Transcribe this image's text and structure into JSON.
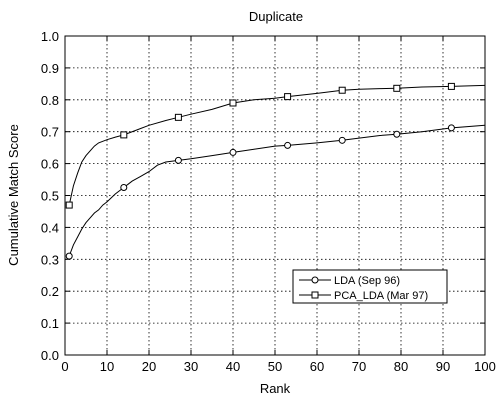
{
  "chart_data": {
    "type": "line",
    "title": "Duplicate",
    "xlabel": "Rank",
    "ylabel": "Cumulative Match Score",
    "xlim": [
      0,
      100
    ],
    "ylim": [
      0.0,
      1.0
    ],
    "xticks": [
      "0",
      "10",
      "20",
      "30",
      "40",
      "50",
      "60",
      "70",
      "80",
      "90",
      "100"
    ],
    "yticks": [
      "0.0",
      "0.1",
      "0.2",
      "0.3",
      "0.4",
      "0.5",
      "0.6",
      "0.7",
      "0.8",
      "0.9",
      "1.0"
    ],
    "grid": true,
    "legend_position": "lower-right",
    "series": [
      {
        "name": "LDA (Sep 96)",
        "marker": "circle",
        "x": [
          1,
          2,
          3,
          4,
          5,
          6,
          7,
          8,
          9,
          10,
          12,
          14,
          16,
          18,
          20,
          22,
          24,
          27,
          30,
          35,
          40,
          45,
          50,
          53,
          60,
          66,
          70,
          75,
          79,
          85,
          92,
          100
        ],
        "y": [
          0.31,
          0.345,
          0.37,
          0.395,
          0.415,
          0.43,
          0.445,
          0.455,
          0.47,
          0.48,
          0.505,
          0.525,
          0.545,
          0.56,
          0.575,
          0.595,
          0.605,
          0.61,
          0.615,
          0.625,
          0.635,
          0.645,
          0.655,
          0.657,
          0.665,
          0.673,
          0.68,
          0.688,
          0.692,
          0.7,
          0.712,
          0.72
        ]
      },
      {
        "name": "PCA_LDA (Mar 97)",
        "marker": "square",
        "x": [
          1,
          2,
          3,
          4,
          5,
          6,
          7,
          8,
          10,
          12,
          14,
          17,
          20,
          24,
          27,
          30,
          35,
          40,
          45,
          50,
          53,
          60,
          66,
          70,
          75,
          79,
          85,
          92,
          100
        ],
        "y": [
          0.47,
          0.53,
          0.57,
          0.605,
          0.625,
          0.64,
          0.655,
          0.665,
          0.675,
          0.683,
          0.69,
          0.705,
          0.72,
          0.735,
          0.745,
          0.755,
          0.77,
          0.79,
          0.8,
          0.805,
          0.81,
          0.82,
          0.83,
          0.833,
          0.835,
          0.836,
          0.84,
          0.842,
          0.845
        ]
      }
    ],
    "marker_points": {
      "LDA (Sep 96)": [
        1,
        14,
        27,
        40,
        53,
        66,
        79,
        92
      ],
      "PCA_LDA (Mar 97)": [
        1,
        14,
        27,
        40,
        53,
        66,
        79,
        92
      ]
    }
  }
}
